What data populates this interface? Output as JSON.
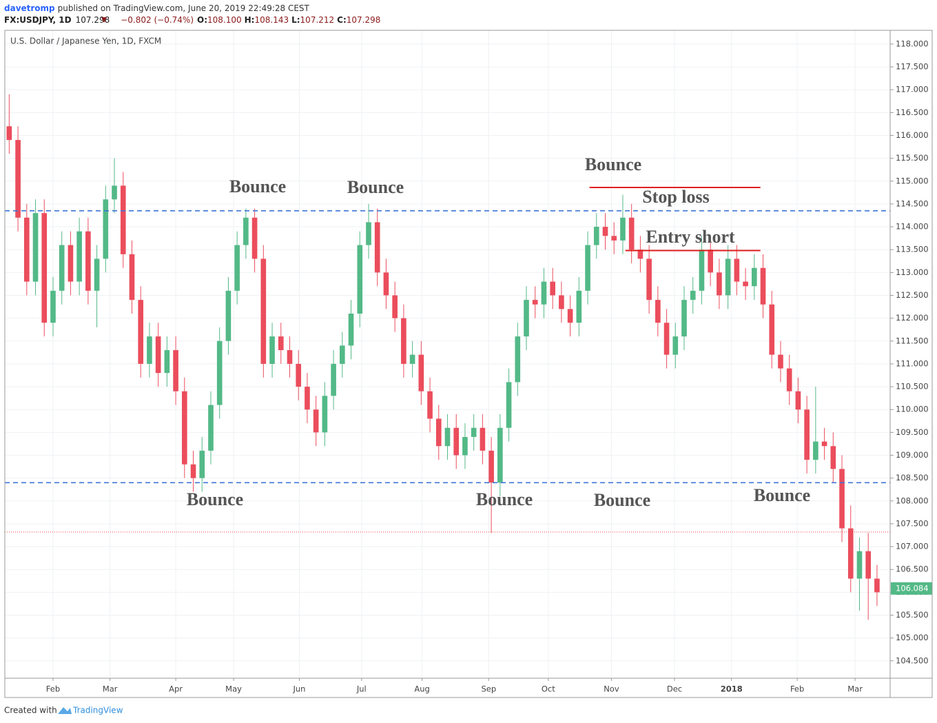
{
  "header": {
    "author": "davetromp",
    "published": "published on TradingView.com, June 20, 2019 22:49:28 CEST",
    "symbol": "FX:USDJPY, 1D",
    "price": "107.298",
    "change": "−0.802 (−0.74%)",
    "ohlc": [
      {
        "label": "O:",
        "value": "108.100"
      },
      {
        "label": "H:",
        "value": "108.143"
      },
      {
        "label": "L:",
        "value": "107.212"
      },
      {
        "label": "C:",
        "value": "107.298"
      }
    ]
  },
  "footer": {
    "created": "Created with",
    "brand": "TradingView"
  },
  "chart_data": {
    "type": "candlestick",
    "title": "U.S. Dollar / Japanese Yen, 1D, FXCM",
    "up_color": "#53b987",
    "down_color": "#eb4d5c",
    "grid": true,
    "open": [
      116.2,
      115.9,
      114.2,
      112.8,
      114.3,
      111.9,
      112.6,
      113.6,
      112.8,
      113.9,
      112.6,
      113.3,
      114.6,
      114.9,
      113.4,
      112.4,
      111.0,
      111.6,
      110.8,
      111.3,
      110.4,
      108.8,
      108.5,
      109.1,
      110.1,
      111.5,
      112.6,
      113.6,
      114.2,
      113.3,
      111.0,
      111.6,
      111.3,
      111.0,
      110.5,
      110.0,
      109.5,
      110.3,
      111.0,
      111.4,
      112.1,
      113.6,
      114.1,
      113.0,
      112.5,
      112.0,
      111.0,
      111.2,
      110.4,
      109.8,
      109.2,
      109.6,
      109.0,
      109.4,
      109.6,
      109.1,
      108.4,
      109.6,
      110.6,
      111.6,
      112.4,
      112.3,
      112.8,
      112.5,
      112.2,
      111.9,
      112.6,
      113.6,
      114.0,
      113.8,
      113.7,
      114.2,
      113.5,
      113.3,
      112.4,
      111.9,
      111.2,
      111.6,
      112.4,
      112.6,
      113.5,
      113.0,
      112.5,
      113.3,
      112.8,
      112.7,
      113.1,
      112.3,
      111.2,
      110.9,
      110.4,
      110.0,
      108.9,
      109.3,
      109.2,
      108.7,
      107.4,
      106.3,
      106.9,
      106.3
    ],
    "high": [
      116.9,
      116.2,
      114.5,
      114.6,
      114.6,
      112.9,
      113.9,
      113.9,
      114.2,
      114.2,
      113.6,
      114.9,
      115.5,
      115.2,
      113.7,
      112.7,
      111.9,
      111.9,
      111.6,
      111.6,
      110.7,
      109.1,
      109.4,
      110.4,
      111.8,
      112.9,
      113.9,
      114.4,
      114.4,
      113.6,
      111.9,
      111.9,
      111.6,
      111.3,
      110.8,
      110.3,
      110.6,
      111.3,
      111.7,
      112.4,
      113.9,
      114.5,
      114.4,
      113.3,
      112.8,
      112.3,
      111.5,
      111.5,
      110.7,
      110.1,
      109.9,
      109.9,
      109.7,
      109.9,
      109.9,
      109.4,
      109.9,
      110.9,
      111.9,
      112.7,
      112.7,
      113.1,
      113.1,
      112.8,
      112.5,
      112.9,
      113.9,
      114.3,
      114.3,
      114.1,
      114.7,
      114.5,
      113.8,
      113.6,
      112.7,
      112.2,
      111.9,
      112.7,
      112.9,
      113.8,
      113.8,
      113.3,
      113.6,
      113.6,
      113.1,
      113.4,
      113.4,
      112.6,
      111.5,
      111.2,
      110.7,
      110.3,
      110.5,
      109.6,
      109.5,
      109.0,
      107.9,
      107.2,
      107.3,
      106.6
    ],
    "low": [
      115.6,
      113.9,
      112.5,
      112.5,
      111.6,
      111.6,
      112.3,
      112.5,
      112.5,
      112.3,
      111.8,
      113.0,
      114.3,
      113.1,
      112.1,
      110.7,
      110.7,
      110.5,
      110.5,
      110.1,
      108.5,
      108.2,
      108.2,
      108.8,
      109.8,
      111.2,
      112.3,
      113.3,
      113.0,
      110.7,
      110.7,
      111.0,
      110.7,
      110.2,
      109.7,
      109.2,
      109.2,
      110.0,
      110.7,
      111.1,
      111.8,
      113.3,
      112.7,
      112.2,
      111.7,
      110.7,
      110.7,
      110.1,
      109.5,
      108.9,
      108.9,
      108.7,
      108.7,
      109.1,
      108.8,
      107.3,
      108.1,
      109.3,
      110.3,
      111.3,
      112.0,
      112.0,
      112.2,
      111.9,
      111.6,
      111.6,
      112.3,
      113.3,
      113.5,
      113.4,
      113.4,
      113.2,
      113.0,
      112.1,
      111.6,
      110.9,
      110.9,
      111.3,
      112.1,
      112.3,
      112.7,
      112.2,
      112.2,
      112.5,
      112.4,
      112.4,
      112.0,
      110.9,
      110.6,
      110.1,
      109.7,
      108.6,
      108.6,
      108.9,
      108.4,
      107.1,
      106.0,
      105.6,
      105.4,
      105.7
    ],
    "close": [
      115.9,
      114.2,
      112.8,
      114.3,
      111.9,
      112.6,
      113.6,
      112.8,
      113.9,
      112.6,
      113.3,
      114.6,
      114.9,
      113.4,
      112.4,
      111.0,
      111.6,
      110.8,
      111.3,
      110.4,
      108.8,
      108.5,
      109.1,
      110.1,
      111.5,
      112.6,
      113.6,
      114.2,
      113.3,
      111.0,
      111.6,
      111.3,
      111.0,
      110.5,
      110.0,
      109.5,
      110.3,
      111.0,
      111.4,
      112.1,
      113.6,
      114.1,
      113.0,
      112.5,
      112.0,
      111.0,
      111.2,
      110.4,
      109.8,
      109.2,
      109.6,
      109.0,
      109.4,
      109.6,
      109.1,
      108.4,
      109.6,
      110.6,
      111.6,
      112.4,
      112.3,
      112.8,
      112.5,
      112.2,
      111.9,
      112.6,
      113.6,
      114.0,
      113.8,
      113.7,
      114.2,
      113.5,
      113.3,
      112.4,
      111.9,
      111.2,
      111.6,
      112.4,
      112.6,
      113.5,
      113.0,
      112.5,
      113.3,
      112.8,
      112.7,
      113.1,
      112.3,
      111.2,
      110.9,
      110.4,
      110.0,
      108.9,
      109.3,
      109.2,
      108.7,
      107.4,
      106.3,
      106.9,
      106.3,
      106.0
    ],
    "xlim": [
      -0.5,
      100.5
    ],
    "xticks": [
      {
        "value": 5.0,
        "label": "Feb"
      },
      {
        "value": 11.5,
        "label": "Mar"
      },
      {
        "value": 19.0,
        "label": "Apr"
      },
      {
        "value": 25.6,
        "label": "May"
      },
      {
        "value": 33.1,
        "label": "Jun"
      },
      {
        "value": 40.2,
        "label": "Jul"
      },
      {
        "value": 47.1,
        "label": "Aug"
      },
      {
        "value": 54.7,
        "label": "Sep"
      },
      {
        "value": 61.5,
        "label": "Oct"
      },
      {
        "value": 68.7,
        "label": "Nov"
      },
      {
        "value": 75.9,
        "label": "Dec"
      },
      {
        "value": 82.4,
        "label": "2018"
      },
      {
        "value": 89.9,
        "label": "Feb"
      },
      {
        "value": 96.5,
        "label": "Mar"
      }
    ],
    "ylim": [
      104.12,
      118.3
    ],
    "yticks": [
      {
        "value": 104.5,
        "label": "104.500"
      },
      {
        "value": 105,
        "label": "105.000"
      },
      {
        "value": 105.5,
        "label": "105.500"
      },
      {
        "value": 106,
        "label": "106.000"
      },
      {
        "value": 106.5,
        "label": "106.500"
      },
      {
        "value": 107,
        "label": "107.000"
      },
      {
        "value": 107.5,
        "label": "107.500"
      },
      {
        "value": 108,
        "label": "108.000"
      },
      {
        "value": 108.5,
        "label": "108.500"
      },
      {
        "value": 109,
        "label": "109.000"
      },
      {
        "value": 109.5,
        "label": "109.500"
      },
      {
        "value": 110,
        "label": "110.000"
      },
      {
        "value": 110.5,
        "label": "110.500"
      },
      {
        "value": 111,
        "label": "111.000"
      },
      {
        "value": 111.5,
        "label": "111.500"
      },
      {
        "value": 112,
        "label": "112.000"
      },
      {
        "value": 112.5,
        "label": "112.500"
      },
      {
        "value": 113,
        "label": "113.000"
      },
      {
        "value": 113.5,
        "label": "113.500"
      },
      {
        "value": 114,
        "label": "114.000"
      },
      {
        "value": 114.5,
        "label": "114.500"
      },
      {
        "value": 115,
        "label": "115.000"
      },
      {
        "value": 115.5,
        "label": "115.500"
      },
      {
        "value": 116,
        "label": "116.000"
      },
      {
        "value": 116.5,
        "label": "116.500"
      },
      {
        "value": 117,
        "label": "117.000"
      },
      {
        "value": 117.5,
        "label": "117.500"
      },
      {
        "value": 118,
        "label": "118.000"
      }
    ],
    "hlines": [
      {
        "value": 114.35,
        "color": "#3d74d8",
        "style": "dashed"
      },
      {
        "value": 108.4,
        "color": "#3d74d8",
        "style": "dashed"
      },
      {
        "value": 107.32,
        "color": "#e53935",
        "style": "dotted"
      }
    ],
    "segments": [
      {
        "value": 114.86,
        "x": [
          66.2,
          85.7
        ],
        "color": "#e01e1e"
      },
      {
        "value": 113.48,
        "x": [
          70.3,
          85.7
        ],
        "color": "#e01e1e"
      }
    ],
    "last_price": {
      "value": 106.084,
      "label": "106.084"
    },
    "annotations": [
      "Bounce",
      "Bounce",
      "Bounce",
      "Bounce",
      "Bounce",
      "Bounce",
      "Bounce",
      "Stop loss",
      "Entry short"
    ]
  }
}
